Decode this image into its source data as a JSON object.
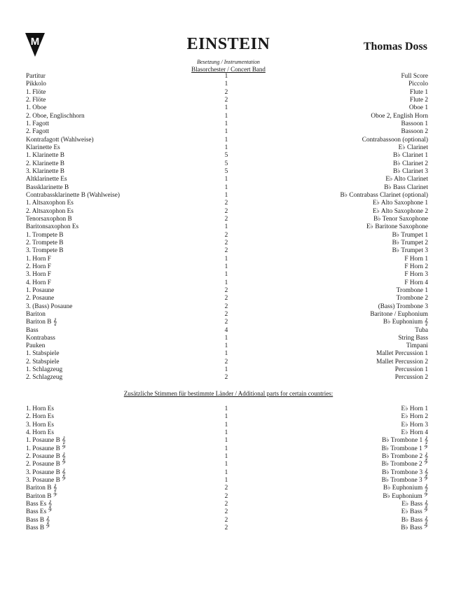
{
  "header": {
    "logo_text": "M",
    "title": "EINSTEIN",
    "composer": "Thomas Doss",
    "subtitle": "Besetzung / Instrumentation",
    "ensemble": "Blasorchester / Concert Band"
  },
  "main_parts": [
    [
      "Partitur",
      "1",
      "Full Score"
    ],
    [
      "Pikkolo",
      "1",
      "Piccolo"
    ],
    [
      "1. Flöte",
      "2",
      "Flute 1"
    ],
    [
      "2. Flöte",
      "2",
      "Flute 2"
    ],
    [
      "1. Oboe",
      "1",
      "Oboe 1"
    ],
    [
      "2. Oboe, Englischhorn",
      "1",
      "Oboe 2, English Horn"
    ],
    [
      "1. Fagott",
      "1",
      "Bassoon 1"
    ],
    [
      "2. Fagott",
      "1",
      "Bassoon 2"
    ],
    [
      "Kontrafagott (Wahlweise)",
      "1",
      "Contrabassoon (optional)"
    ],
    [
      "Klarinette Es",
      "1",
      "E♭ Clarinet"
    ],
    [
      "1. Klarinette B",
      "5",
      "B♭ Clarinet 1"
    ],
    [
      "2. Klarinette B",
      "5",
      "B♭ Clarinet 2"
    ],
    [
      "3. Klarinette B",
      "5",
      "B♭ Clarinet 3"
    ],
    [
      "Altklarinette Es",
      "1",
      "E♭ Alto Clarinet"
    ],
    [
      "Bassklarinette B",
      "1",
      "B♭ Bass Clarinet"
    ],
    [
      "Contrabassklarinette B (Wahlweise)",
      "1",
      "B♭ Contrabass Clarinet (optional)"
    ],
    [
      "1. Altsaxophon Es",
      "2",
      "E♭ Alto Saxophone 1"
    ],
    [
      "2. Altsaxophon Es",
      "2",
      "E♭ Alto Saxophone 2"
    ],
    [
      "Tenorsaxophon B",
      "2",
      "B♭ Tenor Saxophone"
    ],
    [
      "Baritonsaxophon Es",
      "1",
      "E♭ Baritone Saxophone"
    ],
    [
      "1. Trompete B",
      "2",
      "B♭ Trumpet 1"
    ],
    [
      "2. Trompete B",
      "2",
      "B♭ Trumpet 2"
    ],
    [
      "3. Trompete B",
      "2",
      "B♭ Trumpet 3"
    ],
    [
      "1. Horn F",
      "1",
      "F Horn 1"
    ],
    [
      "2. Horn F",
      "1",
      "F Horn 2"
    ],
    [
      "3. Horn F",
      "1",
      "F Horn 3"
    ],
    [
      "4. Horn F",
      "1",
      "F Horn 4"
    ],
    [
      "1. Posaune",
      "2",
      "Trombone 1"
    ],
    [
      "2. Posaune",
      "2",
      "Trombone 2"
    ],
    [
      "3. (Bass) Posaune",
      "2",
      "(Bass) Trombone 3"
    ],
    [
      "Bariton",
      "2",
      "Baritone / Euphonium"
    ],
    [
      "Bariton B 𝄞",
      "2",
      "B♭ Euphonium 𝄞"
    ],
    [
      "Bass",
      "4",
      "Tuba"
    ],
    [
      "Kontrabass",
      "1",
      "String Bass"
    ],
    [
      "Pauken",
      "1",
      "Timpani"
    ],
    [
      "1. Stabspiele",
      "1",
      "Mallet Percussion 1"
    ],
    [
      "2. Stabspiele",
      "2",
      "Mallet Percussion 2"
    ],
    [
      "1. Schlagzeug",
      "1",
      "Percussion 1"
    ],
    [
      "2. Schlagzeug",
      "2",
      "Percussion 2"
    ]
  ],
  "additional_heading": "Zusätzliche Stimmen für bestimmte Länder / Additional parts for certain countries:",
  "additional_parts": [
    [
      "1. Horn Es",
      "1",
      "E♭ Horn 1"
    ],
    [
      "2. Horn Es",
      "1",
      "E♭ Horn 2"
    ],
    [
      "3. Horn Es",
      "1",
      "E♭ Horn 3"
    ],
    [
      "4. Horn Es",
      "1",
      "E♭ Horn 4"
    ],
    [
      "1. Posaune B 𝄞",
      "1",
      "B♭ Trombone 1 𝄞"
    ],
    [
      "1. Posaune B 𝄢",
      "1",
      "B♭ Trombone 1 𝄢"
    ],
    [
      "2. Posaune B 𝄞",
      "1",
      "B♭ Trombone 2 𝄞"
    ],
    [
      "2. Posaune B 𝄢",
      "1",
      "B♭ Trombone 2 𝄢"
    ],
    [
      "3. Posaune B 𝄞",
      "1",
      "B♭ Trombone 3 𝄞"
    ],
    [
      "3. Posaune B 𝄢",
      "1",
      "B♭ Trombone 3 𝄢"
    ],
    [
      "Bariton B 𝄞",
      "2",
      "B♭ Euphonium 𝄞"
    ],
    [
      "Bariton B 𝄢",
      "2",
      "B♭ Euphonium 𝄢"
    ],
    [
      "Bass Es 𝄞",
      "2",
      "E♭ Bass 𝄞"
    ],
    [
      "Bass Es 𝄢",
      "2",
      "E♭ Bass 𝄢"
    ],
    [
      "Bass B 𝄞",
      "2",
      "B♭ Bass 𝄞"
    ],
    [
      "Bass B 𝄢",
      "2",
      "B♭ Bass 𝄢"
    ]
  ]
}
